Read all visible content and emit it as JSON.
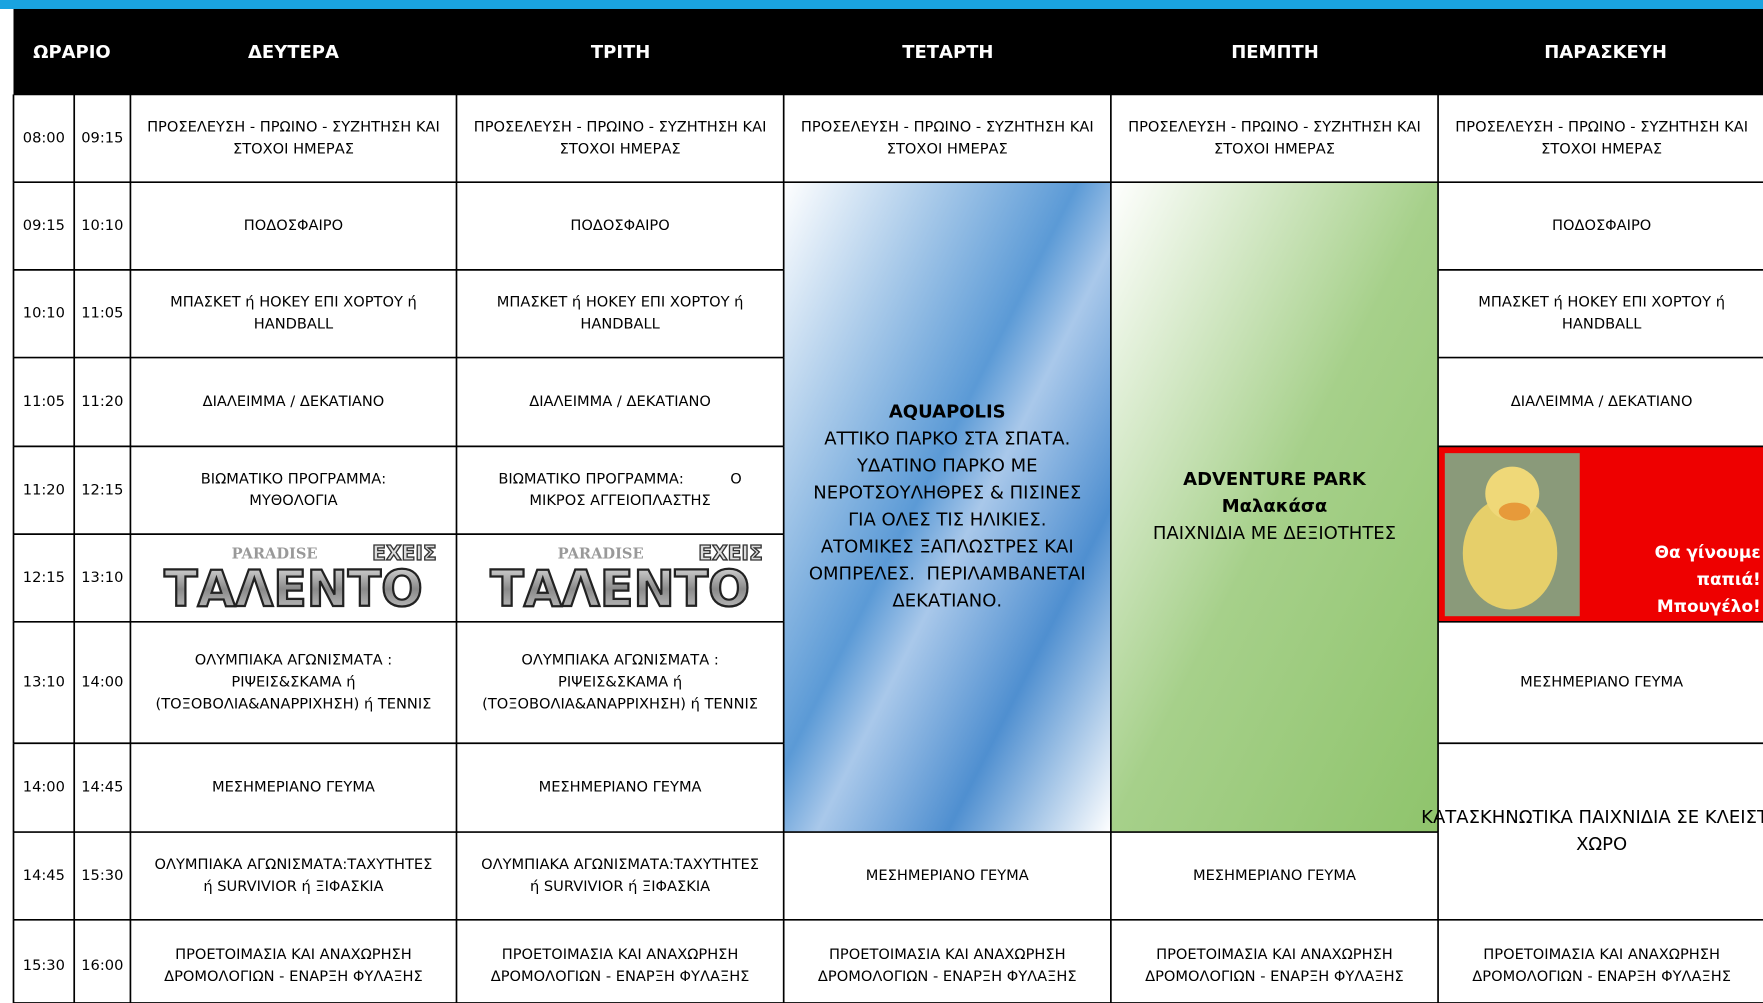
{
  "header": {
    "columns": [
      "ΩΡΑΡΙΟ",
      "ΔΕΥΤΕΡΑ",
      "ΤΡΙΤΗ",
      "ΤΕΤΑΡΤΗ",
      "ΠΕΜΠΤΗ",
      "ΠΑΡΑΣΚΕΥΗ"
    ]
  },
  "table": {
    "rows": [
      {
        "times": [
          "08:00",
          "09:15"
        ],
        "cells": [
          {
            "lines": [
              "ΠΡΟΣΕΛΕΥΣΗ - ΠΡΩΙΝΟ - ΣΥΖΗΤΗΣΗ ΚΑΙ",
              "ΣΤΟΧΟΙ ΗΜΕΡΑΣ"
            ]
          },
          {
            "lines": [
              "ΠΡΟΣΕΛΕΥΣΗ - ΠΡΩΙΝΟ - ΣΥΖΗΤΗΣΗ ΚΑΙ",
              "ΣΤΟΧΟΙ ΗΜΕΡΑΣ"
            ]
          },
          {
            "lines": [
              "ΠΡΟΣΕΛΕΥΣΗ - ΠΡΩΙΝΟ - ΣΥΖΗΤΗΣΗ ΚΑΙ",
              "ΣΤΟΧΟΙ ΗΜΕΡΑΣ"
            ]
          },
          {
            "lines": [
              "ΠΡΟΣΕΛΕΥΣΗ - ΠΡΩΙΝΟ - ΣΥΖΗΤΗΣΗ ΚΑΙ",
              "ΣΤΟΧΟΙ ΗΜΕΡΑΣ"
            ]
          },
          {
            "lines": [
              "ΠΡΟΣΕΛΕΥΣΗ - ΠΡΩΙΝΟ - ΣΥΖΗΤΗΣΗ ΚΑΙ",
              "ΣΤΟΧΟΙ ΗΜΕΡΑΣ"
            ]
          }
        ]
      },
      {
        "times": [
          "09:15",
          "10:10"
        ],
        "cells": [
          {
            "lines": [
              "ΠΟΔΟΣΦΑΙΡΟ"
            ]
          },
          {
            "lines": [
              "ΠΟΔΟΣΦΑΙΡΟ"
            ]
          },
          {
            "bold": [
              "AQUAPOLIS"
            ],
            "lines": [
              "ΑΤΤΙΚΟ ΠΑΡΚΟ ΣΤΑ ΣΠΑΤΑ.",
              "ΥΔΑΤΙΝΟ ΠΑΡΚΟ ΜΕ",
              "ΝΕΡΟΤΣΟΥΛΗΘΡΕΣ & ΠΙΣΙΝΕΣ",
              "ΓΙΑ ΟΛΕΣ ΤΙΣ ΗΛΙΚΙΕΣ.",
              "ΑΤΟΜΙΚΕΣ ΞΑΠΛΩΣΤΡΕΣ ΚΑΙ",
              "ΟΜΠΡΕΛΕΣ.  ΠΕΡΙΛΑΜΒΑΝΕΤΑΙ",
              "ΔΕΚΑΤΙΑΝΟ."
            ]
          },
          {
            "bold": [
              "ADVENTURE PARK",
              "Μαλακάσα"
            ],
            "lines": [
              "ΠΑΙΧΝΙΔΙΑ ΜΕ ΔΕΞΙΟΤΗΤΕΣ"
            ]
          },
          {
            "lines": [
              "ΠΟΔΟΣΦΑΙΡΟ"
            ]
          }
        ]
      },
      {
        "times": [
          "10:10",
          "11:05"
        ],
        "cells": [
          {
            "lines": [
              "ΜΠΑΣΚΕΤ ή ΗΟΚΕΥ ΕΠΙ ΧΟΡΤΟΥ ή",
              "HANDBALL"
            ]
          },
          {
            "lines": [
              "ΜΠΑΣΚΕΤ ή ΗΟΚΕΥ ΕΠΙ ΧΟΡΤΟΥ ή",
              "HANDBALL"
            ]
          },
          {
            "lines": [
              "ΜΠΑΣΚΕΤ ή ΗΟΚΕΥ ΕΠΙ ΧΟΡΤΟΥ ή",
              "HANDBALL"
            ]
          }
        ]
      },
      {
        "times": [
          "11:05",
          "11:20"
        ],
        "cells": [
          {
            "lines": [
              "ΔΙΑΛΕΙΜΜΑ / ΔΕΚΑΤΙΑΝΟ"
            ]
          },
          {
            "lines": [
              "ΔΙΑΛΕΙΜΜΑ / ΔΕΚΑΤΙΑΝΟ"
            ]
          },
          {
            "lines": [
              "ΔΙΑΛΕΙΜΜΑ / ΔΕΚΑΤΙΑΝΟ"
            ]
          }
        ]
      },
      {
        "times": [
          "11:20",
          "12:15"
        ],
        "cells": [
          {
            "lines": [
              "ΒΙΩΜΑΤΙΚΟ ΠΡΟΓΡΑΜΜΑ:",
              "ΜΥΘΟΛΟΓΙΑ"
            ]
          },
          {
            "lines": [
              "ΒΙΩΜΑΤΙΚΟ ΠΡΟΓΡΑΜΜΑ:          Ο",
              "ΜΙΚΡΟΣ ΑΓΓΕΙΟΠΛΑΣΤΗΣ"
            ]
          },
          {
            "bold": [
              "Θα γίνουμε",
              "παπιά!",
              "Μπουγέλο!"
            ]
          }
        ]
      },
      {
        "times": [
          "12:15",
          "13:10"
        ],
        "cells": [
          {
            "logo": [
              "PARADISE",
              "ΕΧΕΙΣ",
              "ΤΑΛΕΝΤΟ"
            ]
          },
          {
            "logo": [
              "PARADISE",
              "ΕΧΕΙΣ",
              "ΤΑΛΕΝΤΟ"
            ]
          }
        ]
      },
      {
        "times": [
          "13:10",
          "14:00"
        ],
        "cells": [
          {
            "lines": [
              "ΟΛΥΜΠΙΑΚΑ ΑΓΩΝΙΣΜΑΤΑ :",
              "ΡΙΨΕΙΣ&ΣΚΑΜΑ ή",
              "(ΤΟΞΟΒΟΛΙΑ&ΑΝΑΡΡΙΧΗΣΗ) ή ΤΕΝΝΙΣ"
            ]
          },
          {
            "lines": [
              "ΟΛΥΜΠΙΑΚΑ ΑΓΩΝΙΣΜΑΤΑ :",
              "ΡΙΨΕΙΣ&ΣΚΑΜΑ ή",
              "(ΤΟΞΟΒΟΛΙΑ&ΑΝΑΡΡΙΧΗΣΗ) ή ΤΕΝΝΙΣ"
            ]
          },
          {
            "lines": [
              "ΜΕΣΗΜΕΡΙΑΝΟ ΓΕΥΜΑ"
            ]
          }
        ]
      },
      {
        "times": [
          "14:00",
          "14:45"
        ],
        "cells": [
          {
            "lines": [
              "ΜΕΣΗΜΕΡΙΑΝΟ ΓΕΥΜΑ"
            ]
          },
          {
            "lines": [
              "ΜΕΣΗΜΕΡΙΑΝΟ ΓΕΥΜΑ"
            ]
          },
          {
            "lines": [
              "ΚΑΤΑΣΚΗΝΩΤΙΚΑ ΠΑΙΧΝΙΔΙΑ ΣΕ ΚΛΕΙΣΤΟ",
              "ΧΩΡΟ"
            ]
          }
        ]
      },
      {
        "times": [
          "14:45",
          "15:30"
        ],
        "cells": [
          {
            "lines": [
              "ΟΛΥΜΠΙΑΚΑ ΑΓΩΝΙΣΜΑΤΑ:ΤΑΧΥΤΗΤΕΣ",
              "ή SURVIVIOR ή ΞΙΦΑΣΚΙΑ"
            ]
          },
          {
            "lines": [
              "ΟΛΥΜΠΙΑΚΑ ΑΓΩΝΙΣΜΑΤΑ:ΤΑΧΥΤΗΤΕΣ",
              "ή SURVIVIOR ή ΞΙΦΑΣΚΙΑ"
            ]
          },
          {
            "lines": [
              "ΜΕΣΗΜΕΡΙΑΝΟ ΓΕΥΜΑ"
            ]
          },
          {
            "lines": [
              "ΜΕΣΗΜΕΡΙΑΝΟ ΓΕΥΜΑ"
            ]
          }
        ]
      },
      {
        "times": [
          "15:30",
          "16:00"
        ],
        "cells": [
          {
            "lines": [
              "ΠΡΟΕΤΟΙΜΑΣΙΑ ΚΑΙ ΑΝΑΧΩΡΗΣΗ",
              "ΔΡΟΜΟΛΟΓΙΩΝ - ΕΝΑΡΞΗ ΦΥΛΑΞΗΣ"
            ]
          },
          {
            "lines": [
              "ΠΡΟΕΤΟΙΜΑΣΙΑ ΚΑΙ ΑΝΑΧΩΡΗΣΗ",
              "ΔΡΟΜΟΛΟΓΙΩΝ - ΕΝΑΡΞΗ ΦΥΛΑΞΗΣ"
            ]
          },
          {
            "lines": [
              "ΠΡΟΕΤΟΙΜΑΣΙΑ ΚΑΙ ΑΝΑΧΩΡΗΣΗ",
              "ΔΡΟΜΟΛΟΓΙΩΝ - ΕΝΑΡΞΗ ΦΥΛΑΞΗΣ"
            ]
          },
          {
            "lines": [
              "ΠΡΟΕΤΟΙΜΑΣΙΑ ΚΑΙ ΑΝΑΧΩΡΗΣΗ",
              "ΔΡΟΜΟΛΟΓΙΩΝ - ΕΝΑΡΞΗ ΦΥΛΑΞΗΣ"
            ]
          },
          {
            "lines": [
              "ΠΡΟΕΤΟΙΜΑΣΙΑ ΚΑΙ ΑΝΑΧΩΡΗΣΗ",
              "ΔΡΟΜΟΛΟΓΙΩΝ - ΕΝΑΡΞΗ ΦΥΛΑΞΗΣ"
            ]
          }
        ]
      }
    ]
  }
}
